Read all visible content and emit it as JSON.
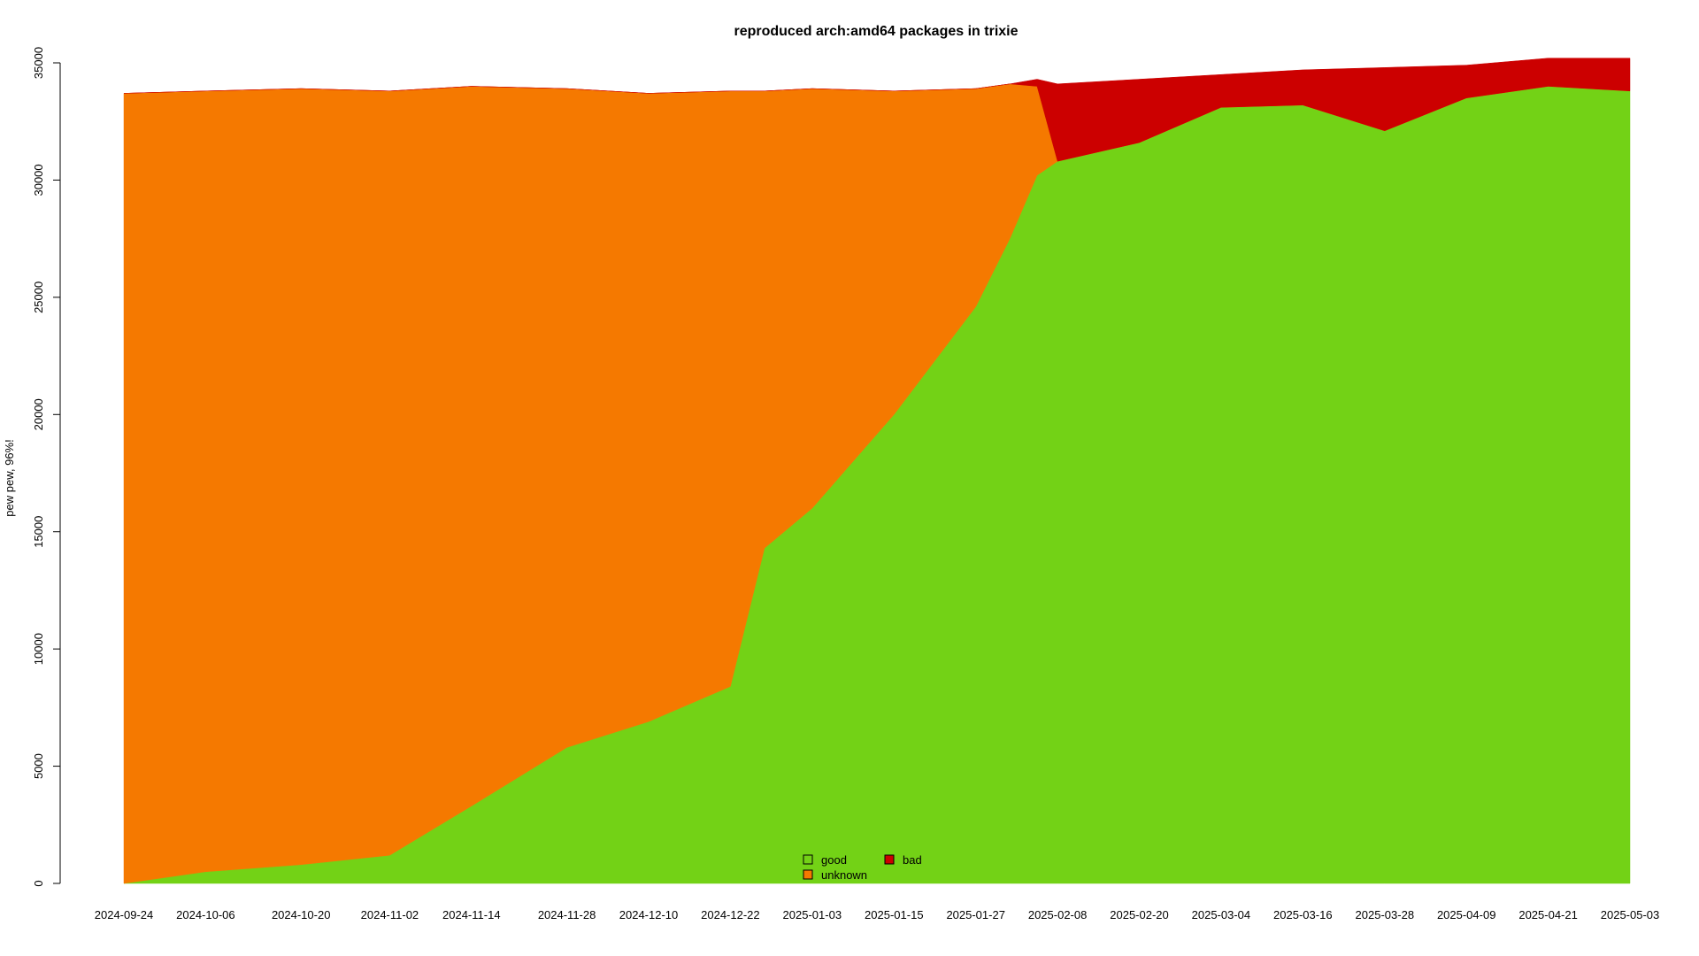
{
  "chart_data": {
    "type": "area",
    "stacked": true,
    "title": "reproduced arch:amd64 packages in trixie",
    "xlabel": "",
    "ylabel": "pew pew, 96%!",
    "ylim": [
      0,
      35000
    ],
    "xlim": [
      "2024-09-24",
      "2025-05-03"
    ],
    "y_ticks": [
      0,
      5000,
      10000,
      15000,
      20000,
      25000,
      30000,
      35000
    ],
    "x_tick_labels": [
      "2024-09-24",
      "2024-10-06",
      "2024-10-20",
      "2024-11-02",
      "2024-11-14",
      "2024-11-28",
      "2024-12-10",
      "2024-12-22",
      "2025-01-03",
      "2025-01-15",
      "2025-01-27",
      "2025-02-08",
      "2025-02-20",
      "2025-03-04",
      "2025-03-16",
      "2025-03-28",
      "2025-04-09",
      "2025-04-21",
      "2025-05-03"
    ],
    "legend_position": "bottom-center",
    "colors": {
      "good": "#73d216",
      "unknown": "#f57900",
      "bad": "#cc0000"
    },
    "x": [
      "2024-09-24",
      "2024-10-06",
      "2024-10-20",
      "2024-11-02",
      "2024-11-14",
      "2024-11-28",
      "2024-12-10",
      "2024-12-22",
      "2024-12-27",
      "2025-01-03",
      "2025-01-15",
      "2025-01-27",
      "2025-02-01",
      "2025-02-05",
      "2025-02-08",
      "2025-02-20",
      "2025-03-04",
      "2025-03-16",
      "2025-03-28",
      "2025-04-09",
      "2025-04-21",
      "2025-05-03"
    ],
    "series": [
      {
        "name": "good",
        "values": [
          0,
          500,
          800,
          1200,
          3300,
          5800,
          6900,
          8400,
          14300,
          16000,
          20000,
          24600,
          27500,
          30200,
          30800,
          31600,
          33100,
          33200,
          32100,
          33500,
          34000,
          33800
        ]
      },
      {
        "name": "unknown",
        "values": [
          33700,
          33300,
          33100,
          32600,
          30700,
          28100,
          26800,
          25400,
          19500,
          17900,
          13800,
          9300,
          6600,
          3800,
          0,
          0,
          0,
          0,
          0,
          0,
          0,
          0
        ]
      },
      {
        "name": "bad",
        "values": [
          0,
          0,
          0,
          0,
          0,
          0,
          0,
          0,
          0,
          0,
          0,
          0,
          0,
          300,
          3300,
          2700,
          1400,
          1500,
          2700,
          1400,
          1200,
          1400
        ]
      }
    ],
    "legend": [
      {
        "name": "good",
        "color": "#73d216"
      },
      {
        "name": "bad",
        "color": "#cc0000"
      },
      {
        "name": "unknown",
        "color": "#f57900"
      }
    ]
  }
}
